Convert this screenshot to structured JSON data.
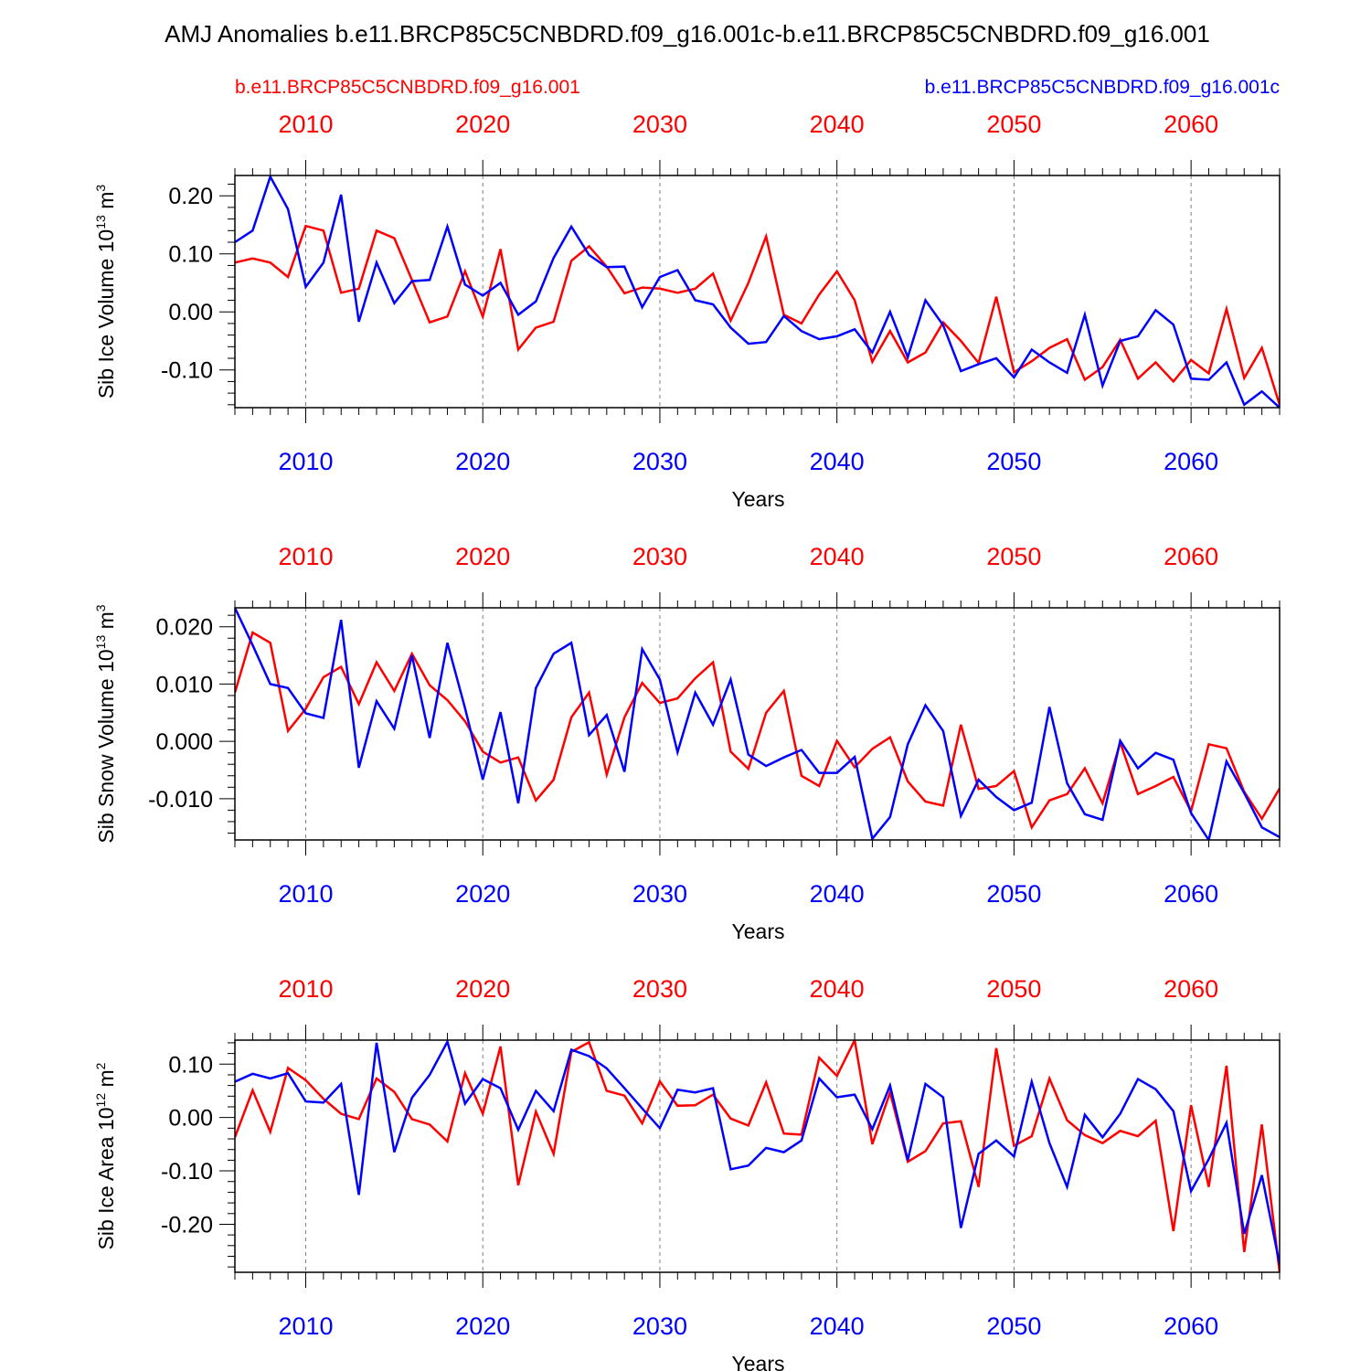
{
  "title": "AMJ Anomalies b.e11.BRCP85C5CNBDRD.f09_g16.001c-b.e11.BRCP85C5CNBDRD.f09_g16.001",
  "legend": {
    "left": "b.e11.BRCP85C5CNBDRD.f09_g16.001",
    "right": "b.e11.BRCP85C5CNBDRD.f09_g16.001c"
  },
  "colors": {
    "red": "#ff0000",
    "blue": "#0000ff",
    "axis": "#000000",
    "grid": "#808080"
  },
  "chart_data": [
    {
      "type": "line",
      "id": "ice-volume",
      "ylabel": "Sib Ice Volume 10",
      "ylabel_exp": "13",
      "ylabel_unit": "m",
      "ylabel_unit_exp": "3",
      "xlabel": "Years",
      "xlim": [
        2006,
        2065
      ],
      "ylim": [
        -0.165,
        0.235
      ],
      "yticks": [
        0.2,
        0.1,
        0.0,
        -0.1
      ],
      "ytick_labels": [
        "0.20",
        "0.10",
        "0.00",
        "-0.10"
      ],
      "ytick_minor": 0.02,
      "xticks": [
        2010,
        2020,
        2030,
        2040,
        2050,
        2060
      ],
      "xtick_labels": [
        "2010",
        "2020",
        "2030",
        "2040",
        "2050",
        "2060"
      ],
      "x_start": 2006,
      "series": [
        {
          "name": "b.e11.BRCP85C5CNBDRD.f09_g16.001",
          "color": "#ff0000",
          "values": [
            0.085,
            0.092,
            0.085,
            0.06,
            0.148,
            0.14,
            0.033,
            0.04,
            0.14,
            0.127,
            0.055,
            -0.018,
            -0.008,
            0.07,
            -0.008,
            0.108,
            -0.065,
            -0.027,
            -0.017,
            0.088,
            0.113,
            0.078,
            0.032,
            0.042,
            0.04,
            0.033,
            0.04,
            0.066,
            -0.015,
            0.05,
            0.13,
            -0.005,
            -0.02,
            0.03,
            0.07,
            0.02,
            -0.086,
            -0.033,
            -0.087,
            -0.07,
            -0.018,
            -0.05,
            -0.088,
            0.026,
            -0.104,
            -0.085,
            -0.062,
            -0.047,
            -0.117,
            -0.095,
            -0.048,
            -0.115,
            -0.087,
            -0.12,
            -0.083,
            -0.106,
            0.005,
            -0.114,
            -0.062,
            -0.16
          ]
        },
        {
          "name": "b.e11.BRCP85C5CNBDRD.f09_g16.001c",
          "color": "#0000ff",
          "values": [
            0.12,
            0.14,
            0.233,
            0.177,
            0.043,
            0.085,
            0.202,
            -0.017,
            0.085,
            0.015,
            0.053,
            0.055,
            0.147,
            0.047,
            0.028,
            0.05,
            -0.005,
            0.018,
            0.093,
            0.147,
            0.098,
            0.077,
            0.078,
            0.008,
            0.06,
            0.072,
            0.02,
            0.013,
            -0.027,
            -0.055,
            -0.052,
            -0.007,
            -0.033,
            -0.047,
            -0.042,
            -0.03,
            -0.07,
            0.0,
            -0.078,
            0.02,
            -0.023,
            -0.102,
            -0.09,
            -0.08,
            -0.113,
            -0.065,
            -0.087,
            -0.105,
            -0.005,
            -0.127,
            -0.05,
            -0.042,
            0.003,
            -0.022,
            -0.115,
            -0.117,
            -0.087,
            -0.16,
            -0.137,
            -0.165
          ]
        }
      ]
    },
    {
      "type": "line",
      "id": "snow-volume",
      "ylabel": "Sib Snow Volume 10",
      "ylabel_exp": "13",
      "ylabel_unit": "m",
      "ylabel_unit_exp": "3",
      "xlabel": "Years",
      "xlim": [
        2006,
        2065
      ],
      "ylim": [
        -0.0172,
        0.0233
      ],
      "yticks": [
        0.02,
        0.01,
        0.0,
        -0.01
      ],
      "ytick_labels": [
        "0.020",
        "0.010",
        "0.000",
        "-0.010"
      ],
      "ytick_minor": 0.002,
      "xticks": [
        2010,
        2020,
        2030,
        2040,
        2050,
        2060
      ],
      "xtick_labels": [
        "2010",
        "2020",
        "2030",
        "2040",
        "2050",
        "2060"
      ],
      "x_start": 2006,
      "series": [
        {
          "name": "b.e11.BRCP85C5CNBDRD.f09_g16.001",
          "color": "#ff0000",
          "values": [
            0.0085,
            0.019,
            0.0172,
            0.0018,
            0.0057,
            0.0112,
            0.013,
            0.0065,
            0.0138,
            0.0088,
            0.0153,
            0.0098,
            0.0072,
            0.0035,
            -0.0018,
            -0.0037,
            -0.0028,
            -0.0103,
            -0.0067,
            0.0042,
            0.0085,
            -0.0058,
            0.0042,
            0.0102,
            0.0067,
            0.0075,
            0.011,
            0.0138,
            -0.0018,
            -0.0048,
            0.005,
            0.0088,
            -0.006,
            -0.0078,
            0.0001,
            -0.0045,
            -0.0013,
            0.0007,
            -0.007,
            -0.0105,
            -0.0112,
            0.0029,
            -0.0083,
            -0.0078,
            -0.0052,
            -0.015,
            -0.0103,
            -0.0092,
            -0.0047,
            -0.0108,
            -0.0002,
            -0.0092,
            -0.0078,
            -0.0062,
            -0.0122,
            -0.0005,
            -0.0012,
            -0.0088,
            -0.0135,
            -0.0082
          ]
        },
        {
          "name": "b.e11.BRCP85C5CNBDRD.f09_g16.001c",
          "color": "#0000ff",
          "values": [
            0.0233,
            0.0168,
            0.01,
            0.0093,
            0.0049,
            0.0041,
            0.0212,
            -0.0046,
            0.007,
            0.0022,
            0.015,
            0.0006,
            0.0172,
            0.0058,
            -0.0067,
            0.0051,
            -0.0108,
            0.0093,
            0.0153,
            0.0172,
            0.0011,
            0.0046,
            -0.0053,
            0.0161,
            0.0108,
            -0.0019,
            0.0085,
            0.0029,
            0.0108,
            -0.0023,
            -0.0043,
            -0.0028,
            -0.0015,
            -0.0055,
            -0.0055,
            -0.0027,
            -0.017,
            -0.0132,
            -0.0005,
            0.0063,
            0.0018,
            -0.013,
            -0.0067,
            -0.0097,
            -0.012,
            -0.0107,
            0.006,
            -0.0073,
            -0.0127,
            -0.0137,
            0.0001,
            -0.0047,
            -0.002,
            -0.0032,
            -0.0125,
            -0.0172,
            -0.0035,
            -0.009,
            -0.015,
            -0.0167
          ]
        }
      ]
    },
    {
      "type": "line",
      "id": "ice-area",
      "ylabel": "Sib Ice Area 10",
      "ylabel_exp": "12",
      "ylabel_unit": "m",
      "ylabel_unit_exp": "2",
      "xlabel": "Years",
      "xlim": [
        2006,
        2065
      ],
      "ylim": [
        -0.29,
        0.145
      ],
      "yticks": [
        0.1,
        0.0,
        -0.1,
        -0.2
      ],
      "ytick_labels": [
        "0.10",
        "0.00",
        "-0.10",
        "-0.20"
      ],
      "ytick_minor": 0.02,
      "xticks": [
        2010,
        2020,
        2030,
        2040,
        2050,
        2060
      ],
      "xtick_labels": [
        "2010",
        "2020",
        "2030",
        "2040",
        "2050",
        "2060"
      ],
      "x_start": 2006,
      "series": [
        {
          "name": "b.e11.BRCP85C5CNBDRD.f09_g16.001",
          "color": "#ff0000",
          "values": [
            -0.037,
            0.051,
            -0.027,
            0.093,
            0.07,
            0.035,
            0.007,
            -0.003,
            0.073,
            0.048,
            -0.003,
            -0.013,
            -0.045,
            0.083,
            0.007,
            0.133,
            -0.127,
            0.011,
            -0.068,
            0.123,
            0.141,
            0.05,
            0.041,
            -0.011,
            0.068,
            0.022,
            0.023,
            0.043,
            -0.002,
            -0.015,
            0.066,
            -0.03,
            -0.032,
            0.112,
            0.078,
            0.145,
            -0.05,
            0.047,
            -0.083,
            -0.063,
            -0.011,
            -0.007,
            -0.13,
            0.13,
            -0.053,
            -0.035,
            0.073,
            -0.005,
            -0.033,
            -0.048,
            -0.025,
            -0.035,
            -0.006,
            -0.213,
            0.023,
            -0.13,
            0.097,
            -0.252,
            -0.013,
            -0.29
          ]
        },
        {
          "name": "b.e11.BRCP85C5CNBDRD.f09_g16.001c",
          "color": "#0000ff",
          "values": [
            0.067,
            0.082,
            0.073,
            0.083,
            0.03,
            0.028,
            0.063,
            -0.145,
            0.14,
            -0.065,
            0.037,
            0.08,
            0.142,
            0.026,
            0.072,
            0.055,
            -0.023,
            0.05,
            0.012,
            0.127,
            0.115,
            0.092,
            0.055,
            0.017,
            -0.02,
            0.052,
            0.047,
            0.055,
            -0.097,
            -0.09,
            -0.057,
            -0.065,
            -0.043,
            0.073,
            0.038,
            0.043,
            -0.022,
            0.06,
            -0.08,
            0.063,
            0.038,
            -0.207,
            -0.068,
            -0.043,
            -0.073,
            0.067,
            -0.048,
            -0.13,
            0.005,
            -0.037,
            0.007,
            0.072,
            0.053,
            0.012,
            -0.138,
            -0.078,
            -0.01,
            -0.218,
            -0.108,
            -0.275
          ]
        }
      ]
    }
  ]
}
